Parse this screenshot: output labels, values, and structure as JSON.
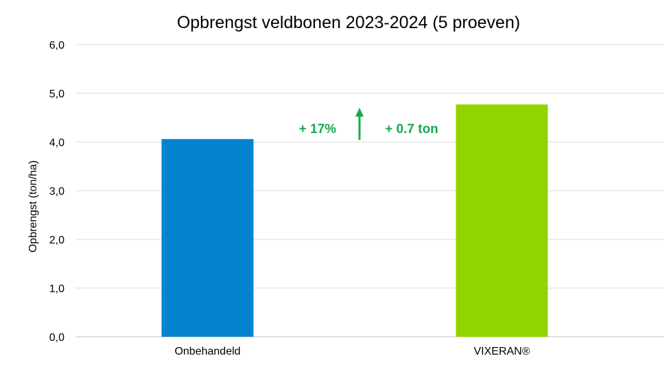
{
  "chart_data": {
    "type": "bar",
    "title": "Opbrengst veldbonen 2023-2024 (5 proeven)",
    "xlabel": "",
    "ylabel": "Opbrengst (ton/ha)",
    "categories": [
      "Onbehandeld",
      "VIXERAN®"
    ],
    "values": [
      4.06,
      4.77
    ],
    "bar_colors": [
      "#0583cf",
      "#92d400"
    ],
    "ylim": [
      0,
      6
    ],
    "yticks": [
      "0,0",
      "1,0",
      "2,0",
      "3,0",
      "4,0",
      "5,0",
      "6,0"
    ],
    "grid": true,
    "legend": "none",
    "annotations": {
      "percent": "+ 17%",
      "tons": "+ 0.7 ton",
      "color": "#1aa84f",
      "arrow_icon": "up-arrow-icon"
    }
  }
}
